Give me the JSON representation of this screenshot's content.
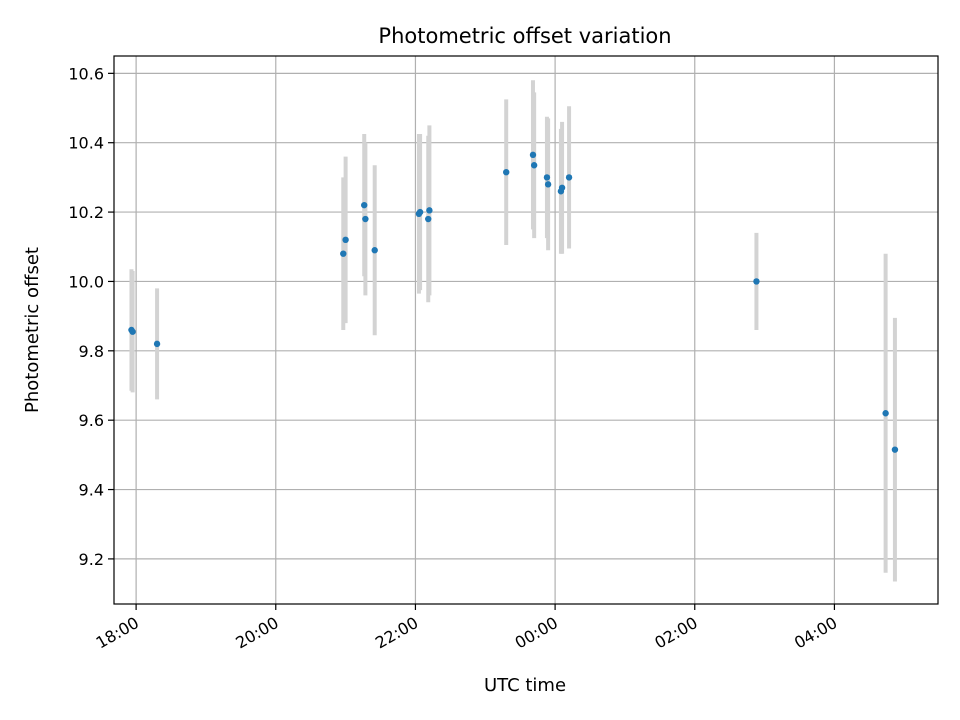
{
  "chart_data": {
    "type": "scatter",
    "title": "Photometric offset variation",
    "xlabel": "UTC time",
    "ylabel": "Photometric offset",
    "x_tick_labels": [
      "18:00",
      "20:00",
      "22:00",
      "00:00",
      "02:00",
      "04:00"
    ],
    "y_tick_labels": [
      "9.2",
      "9.4",
      "9.6",
      "9.8",
      "10.0",
      "10.2",
      "10.4",
      "10.6"
    ],
    "xlim": [
      "17:41",
      "05:29"
    ],
    "ylim": [
      9.07,
      10.65
    ],
    "grid": true,
    "colors": {
      "points": "#1f77b4",
      "errorbars": "#d3d3d3",
      "grid": "#b0b0b0"
    },
    "series": [
      {
        "points": [
          {
            "x": "17:56",
            "y": 9.86,
            "err": 0.175
          },
          {
            "x": "17:57",
            "y": 9.855,
            "err": 0.175
          },
          {
            "x": "18:18",
            "y": 9.82,
            "err": 0.16
          },
          {
            "x": "20:58",
            "y": 10.08,
            "err": 0.22
          },
          {
            "x": "21:00",
            "y": 10.12,
            "err": 0.24
          },
          {
            "x": "21:16",
            "y": 10.22,
            "err": 0.205
          },
          {
            "x": "21:17",
            "y": 10.18,
            "err": 0.22
          },
          {
            "x": "21:25",
            "y": 10.09,
            "err": 0.245
          },
          {
            "x": "22:03",
            "y": 10.195,
            "err": 0.23
          },
          {
            "x": "22:04",
            "y": 10.2,
            "err": 0.225
          },
          {
            "x": "22:11",
            "y": 10.18,
            "err": 0.24
          },
          {
            "x": "22:12",
            "y": 10.205,
            "err": 0.245
          },
          {
            "x": "23:18",
            "y": 10.315,
            "err": 0.21
          },
          {
            "x": "23:41",
            "y": 10.365,
            "err": 0.215
          },
          {
            "x": "23:42",
            "y": 10.335,
            "err": 0.21
          },
          {
            "x": "23:53",
            "y": 10.3,
            "err": 0.175
          },
          {
            "x": "23:54",
            "y": 10.28,
            "err": 0.19
          },
          {
            "x": "00:05",
            "y": 10.26,
            "err": 0.18
          },
          {
            "x": "00:06",
            "y": 10.27,
            "err": 0.19
          },
          {
            "x": "00:12",
            "y": 10.3,
            "err": 0.205
          },
          {
            "x": "02:53",
            "y": 10.0,
            "err": 0.14
          },
          {
            "x": "04:44",
            "y": 9.62,
            "err": 0.46
          },
          {
            "x": "04:52",
            "y": 9.515,
            "err": 0.38
          }
        ]
      }
    ]
  }
}
